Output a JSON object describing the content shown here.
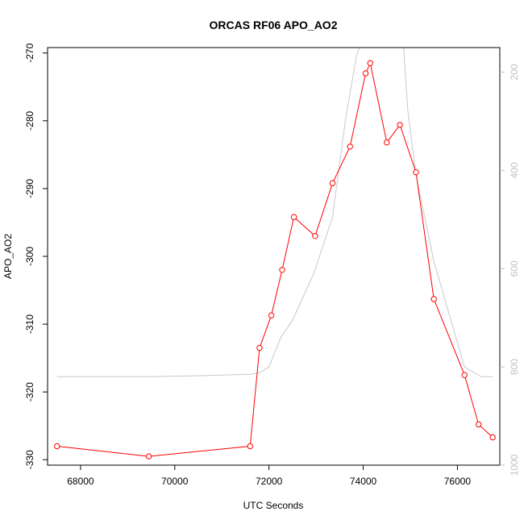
{
  "chart_data": {
    "type": "line",
    "title": "ORCAS RF06 APO_AO2",
    "xlabel": "UTC Seconds",
    "ylabel": "APO_AO2",
    "xlim": [
      67300,
      76900
    ],
    "ylim": [
      -330.8,
      -269.2
    ],
    "x_ticks": [
      "68000",
      "70000",
      "72000",
      "74000",
      "76000"
    ],
    "y_ticks": [
      "-270",
      "-280",
      "-290",
      "-300",
      "-310",
      "-320",
      "-330"
    ],
    "series": [
      {
        "color": "#ff0000",
        "marker": "open-circle",
        "points": [
          [
            67500,
            -328.0
          ],
          [
            69450,
            -329.5
          ],
          [
            71600,
            -328.0
          ],
          [
            71800,
            -313.5
          ],
          [
            72050,
            -308.7
          ],
          [
            72280,
            -302.0
          ],
          [
            72530,
            -294.2
          ],
          [
            72980,
            -297.0
          ],
          [
            73350,
            -289.2
          ],
          [
            73720,
            -283.8
          ],
          [
            74050,
            -273.0
          ],
          [
            74150,
            -271.5
          ],
          [
            74500,
            -283.2
          ],
          [
            74780,
            -280.6
          ],
          [
            75120,
            -287.6
          ],
          [
            75500,
            -306.3
          ],
          [
            76150,
            -317.5
          ],
          [
            76450,
            -324.8
          ],
          [
            76750,
            -326.7
          ]
        ]
      }
    ],
    "secondary_axis": {
      "side": "right",
      "ylim": [
        1000,
        150
      ],
      "ticks": [
        "200",
        "400",
        "600",
        "800",
        "1000"
      ],
      "color": "#c0c0c0",
      "series": [
        {
          "color": "#c8c8c8",
          "points": [
            [
              67500,
              820
            ],
            [
              69450,
              820
            ],
            [
              70500,
              818
            ],
            [
              71600,
              815
            ],
            [
              71800,
              812
            ],
            [
              72000,
              800
            ],
            [
              72250,
              740
            ],
            [
              72500,
              705
            ],
            [
              72950,
              610
            ],
            [
              73350,
              495
            ],
            [
              73620,
              300
            ],
            [
              73850,
              170
            ],
            [
              73950,
              140
            ],
            [
              74850,
              140
            ],
            [
              74950,
              280
            ],
            [
              75120,
              410
            ],
            [
              75500,
              585
            ],
            [
              76150,
              800
            ],
            [
              76500,
              820
            ],
            [
              76750,
              820
            ]
          ]
        }
      ]
    }
  }
}
